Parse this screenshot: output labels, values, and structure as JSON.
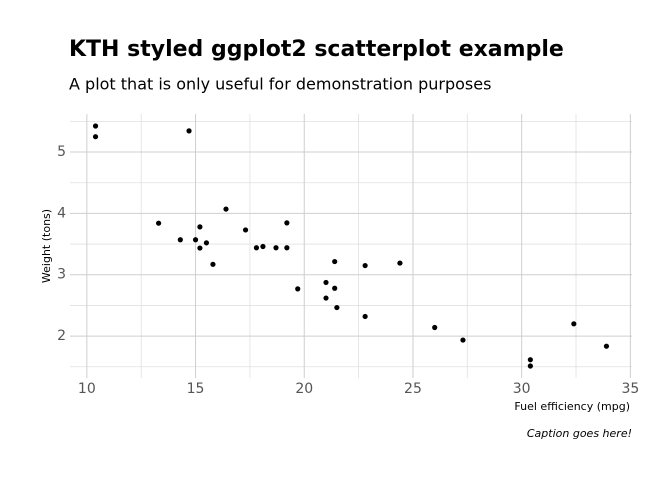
{
  "chart_data": {
    "type": "scatter",
    "title": "KTH styled ggplot2 scatterplot example",
    "subtitle": "A plot that is only useful for demonstration purposes",
    "x_label": "Fuel efficiency (mpg)",
    "y_label": "Weight (tons)",
    "caption": "Caption goes here!",
    "color": "#000000",
    "grid": true,
    "x": [
      21.0,
      21.0,
      22.8,
      21.4,
      18.7,
      18.1,
      14.3,
      24.4,
      22.8,
      19.2,
      17.8,
      16.4,
      17.3,
      15.2,
      10.4,
      10.4,
      14.7,
      32.4,
      30.4,
      33.9,
      21.5,
      15.5,
      15.2,
      13.3,
      19.2,
      27.3,
      26.0,
      30.4,
      15.8,
      19.7,
      15.0,
      21.4
    ],
    "values": [
      2.62,
      2.875,
      2.32,
      3.215,
      3.44,
      3.46,
      3.57,
      3.19,
      3.15,
      3.44,
      3.44,
      4.07,
      3.73,
      3.78,
      5.25,
      5.424,
      5.345,
      2.2,
      1.615,
      1.835,
      2.465,
      3.52,
      3.435,
      3.84,
      3.845,
      1.935,
      2.14,
      1.513,
      3.17,
      2.77,
      3.57,
      2.78
    ],
    "xlim": [
      9.225,
      35.075
    ],
    "xticks": [
      10,
      15,
      20,
      25,
      30,
      35
    ],
    "ylim": [
      1.317,
      5.62
    ],
    "yticks": [
      2,
      3,
      4,
      5
    ]
  }
}
